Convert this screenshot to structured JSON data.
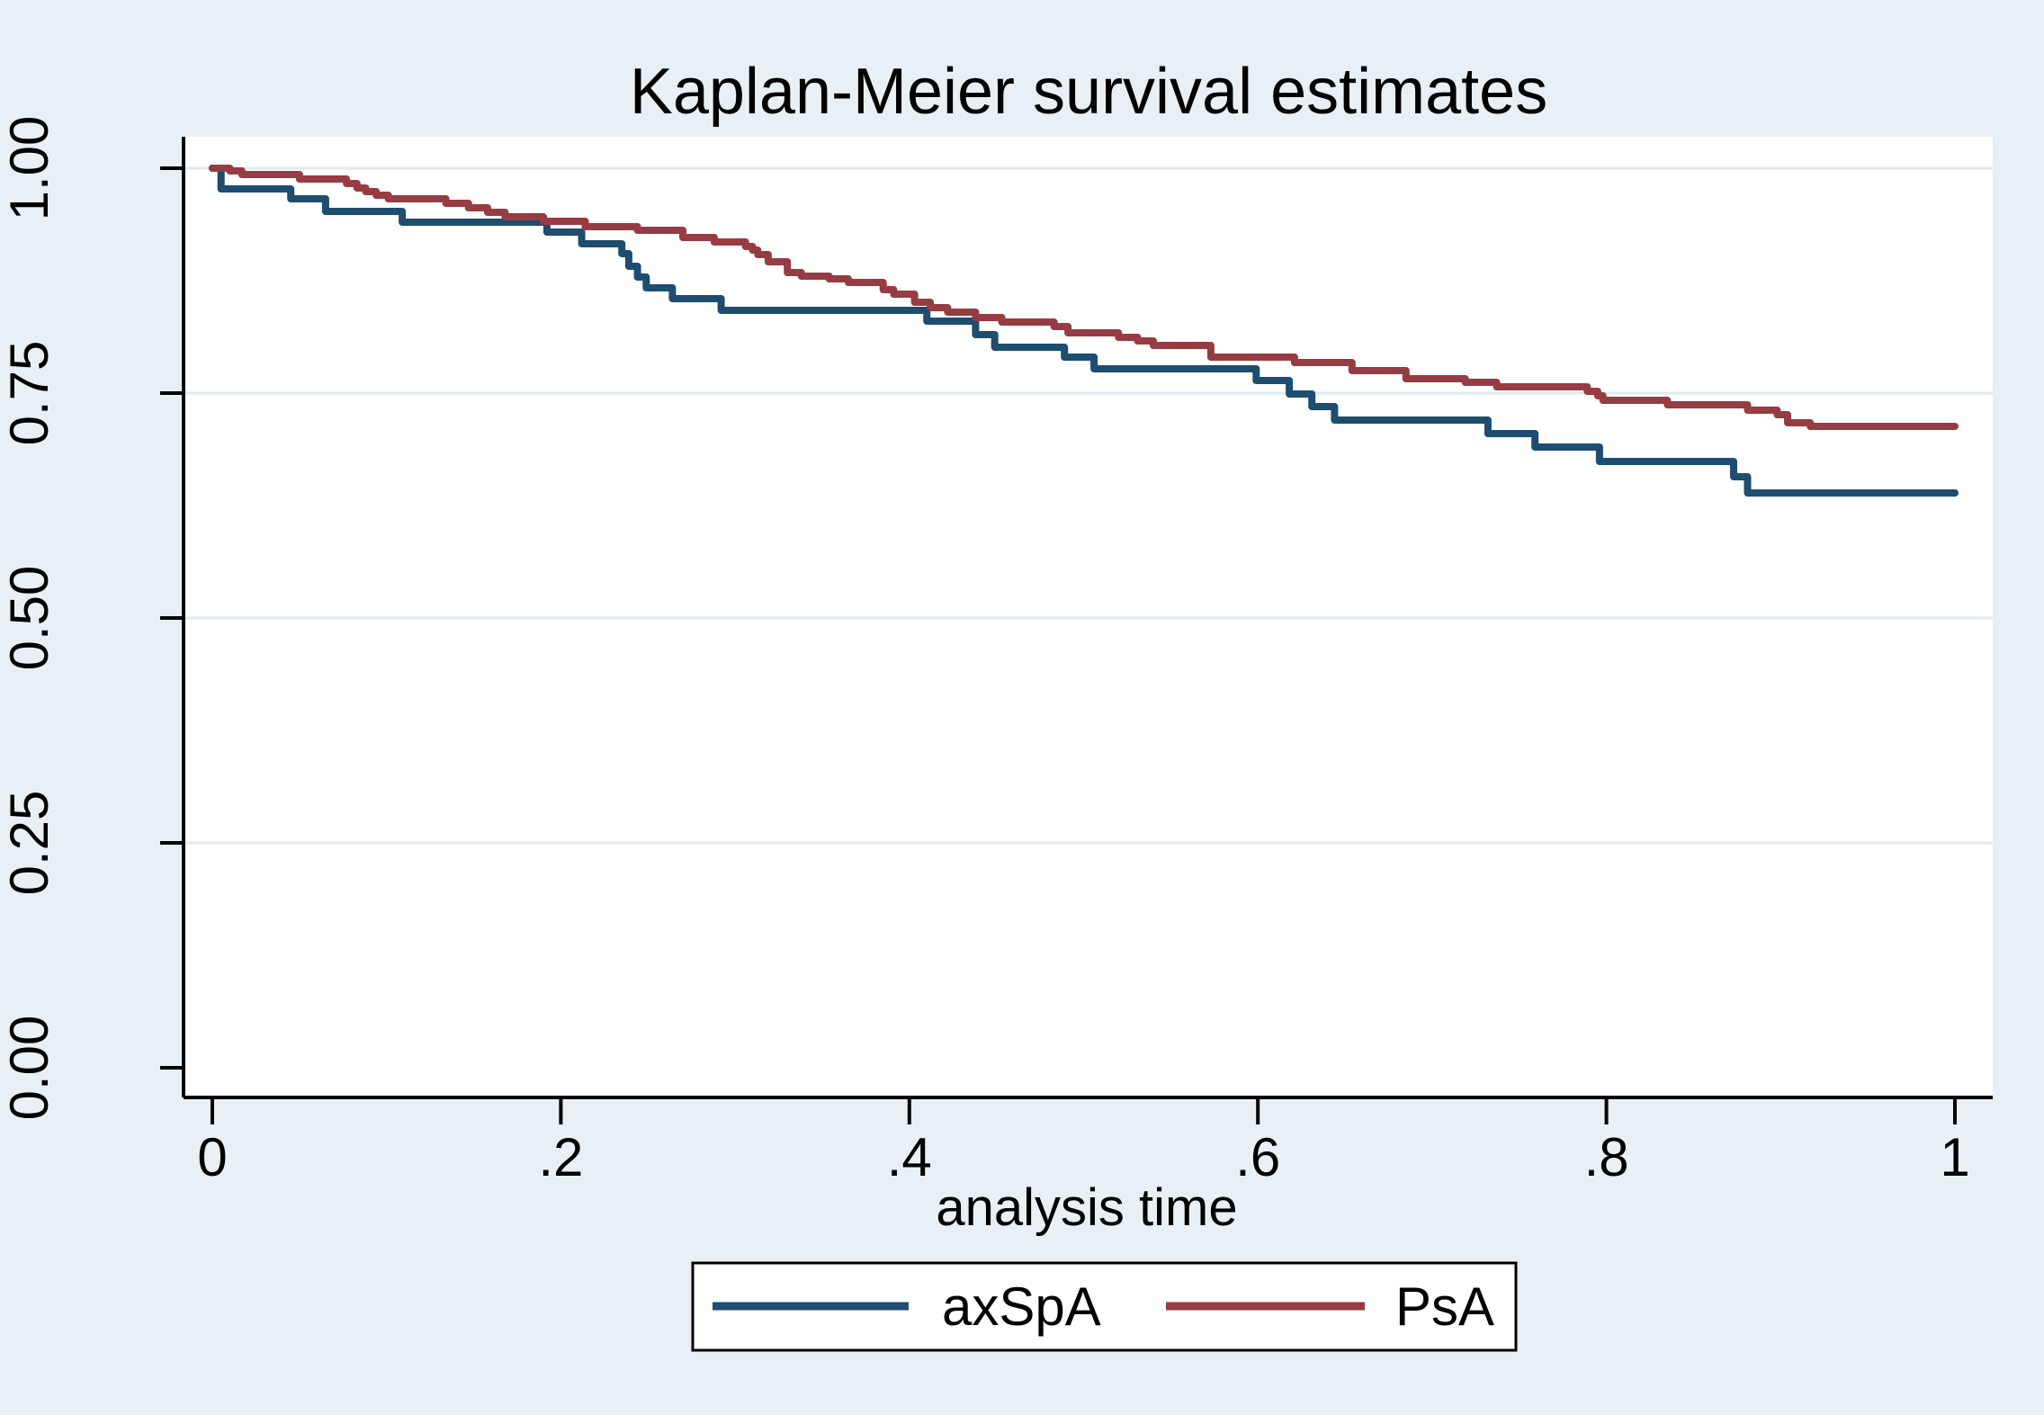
{
  "colors": {
    "page_background": "#e9f0f5",
    "plot_background": "#ffffff",
    "gridline": "#dfeaf2",
    "axis": "#000000",
    "title": "#203a61",
    "tick_text": "#000000",
    "legend_border": "#000000",
    "legend_background": "#ffffff",
    "series_axspa": "#1d4d6f",
    "series_psa": "#963c42"
  },
  "chart_data": {
    "type": "line",
    "subtype": "kaplan-meier-step",
    "title": "Kaplan-Meier survival estimates",
    "xlabel": "analysis time",
    "ylabel": "",
    "xlim": [
      0,
      1
    ],
    "ylim": [
      0,
      1
    ],
    "grid": "horizontal",
    "legend_position": "bottom-center",
    "x_ticks": [
      {
        "label": "0",
        "value": 0
      },
      {
        "label": ".2",
        "value": 0.2
      },
      {
        "label": ".4",
        "value": 0.4
      },
      {
        "label": ".6",
        "value": 0.6
      },
      {
        "label": ".8",
        "value": 0.8
      },
      {
        "label": "1",
        "value": 1
      }
    ],
    "y_ticks": [
      {
        "label": "0.00",
        "value": 0.0
      },
      {
        "label": "0.25",
        "value": 0.25
      },
      {
        "label": "0.50",
        "value": 0.5
      },
      {
        "label": "0.75",
        "value": 0.75
      },
      {
        "label": "1.00",
        "value": 1.0
      }
    ],
    "series": [
      {
        "name": "axSpA",
        "color": "#1d4d6f",
        "points": [
          [
            0.0,
            1.0
          ],
          [
            0.005,
            0.977
          ],
          [
            0.045,
            0.966
          ],
          [
            0.065,
            0.952
          ],
          [
            0.109,
            0.94
          ],
          [
            0.192,
            0.929
          ],
          [
            0.212,
            0.916
          ],
          [
            0.235,
            0.905
          ],
          [
            0.239,
            0.891
          ],
          [
            0.244,
            0.879
          ],
          [
            0.249,
            0.867
          ],
          [
            0.264,
            0.855
          ],
          [
            0.292,
            0.842
          ],
          [
            0.41,
            0.83
          ],
          [
            0.438,
            0.815
          ],
          [
            0.449,
            0.801
          ],
          [
            0.489,
            0.79
          ],
          [
            0.506,
            0.777
          ],
          [
            0.599,
            0.764
          ],
          [
            0.618,
            0.749
          ],
          [
            0.631,
            0.735
          ],
          [
            0.644,
            0.72
          ],
          [
            0.732,
            0.705
          ],
          [
            0.759,
            0.69
          ],
          [
            0.796,
            0.674
          ],
          [
            0.873,
            0.657
          ],
          [
            0.881,
            0.639
          ],
          [
            1.0,
            0.639
          ]
        ]
      },
      {
        "name": "PsA",
        "color": "#963c42",
        "points": [
          [
            0.0,
            1.0
          ],
          [
            0.01,
            0.997
          ],
          [
            0.017,
            0.993
          ],
          [
            0.05,
            0.988
          ],
          [
            0.077,
            0.983
          ],
          [
            0.083,
            0.978
          ],
          [
            0.088,
            0.974
          ],
          [
            0.094,
            0.97
          ],
          [
            0.101,
            0.966
          ],
          [
            0.134,
            0.961
          ],
          [
            0.147,
            0.956
          ],
          [
            0.158,
            0.951
          ],
          [
            0.168,
            0.946
          ],
          [
            0.19,
            0.941
          ],
          [
            0.214,
            0.935
          ],
          [
            0.244,
            0.931
          ],
          [
            0.27,
            0.923
          ],
          [
            0.288,
            0.918
          ],
          [
            0.306,
            0.913
          ],
          [
            0.31,
            0.909
          ],
          [
            0.313,
            0.904
          ],
          [
            0.319,
            0.896
          ],
          [
            0.33,
            0.884
          ],
          [
            0.338,
            0.88
          ],
          [
            0.354,
            0.877
          ],
          [
            0.365,
            0.873
          ],
          [
            0.385,
            0.865
          ],
          [
            0.391,
            0.86
          ],
          [
            0.403,
            0.851
          ],
          [
            0.412,
            0.845
          ],
          [
            0.422,
            0.84
          ],
          [
            0.438,
            0.834
          ],
          [
            0.453,
            0.829
          ],
          [
            0.483,
            0.824
          ],
          [
            0.491,
            0.817
          ],
          [
            0.52,
            0.812
          ],
          [
            0.531,
            0.808
          ],
          [
            0.54,
            0.803
          ],
          [
            0.573,
            0.79
          ],
          [
            0.621,
            0.784
          ],
          [
            0.654,
            0.775
          ],
          [
            0.685,
            0.766
          ],
          [
            0.719,
            0.762
          ],
          [
            0.737,
            0.757
          ],
          [
            0.789,
            0.752
          ],
          [
            0.795,
            0.747
          ],
          [
            0.798,
            0.742
          ],
          [
            0.835,
            0.737
          ],
          [
            0.881,
            0.731
          ],
          [
            0.898,
            0.726
          ],
          [
            0.904,
            0.717
          ],
          [
            0.917,
            0.713
          ],
          [
            1.0,
            0.713
          ]
        ]
      }
    ]
  }
}
